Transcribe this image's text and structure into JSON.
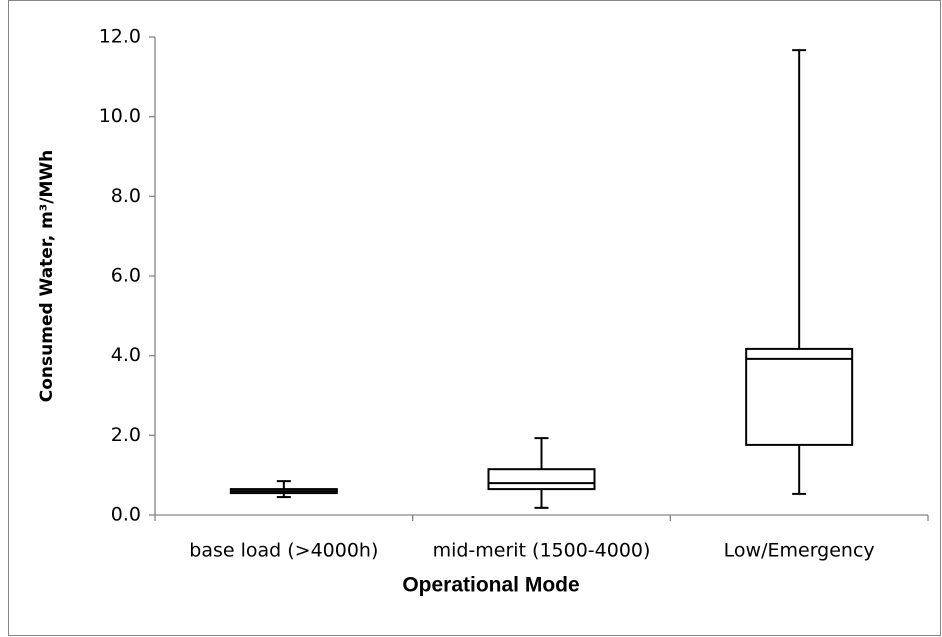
{
  "chart_data": {
    "type": "box",
    "x_label": "Operational Mode",
    "y_label": "Consumed Water, m³/MWh",
    "categories": [
      "base load (>4000h)",
      "mid-merit (1500-4000)",
      "Low/Emergency"
    ],
    "min": [
      0.45,
      0.18,
      0.53
    ],
    "q1": [
      0.55,
      0.65,
      1.76
    ],
    "median": [
      0.6,
      0.8,
      3.92
    ],
    "q3": [
      0.65,
      1.15,
      4.17
    ],
    "max": [
      0.85,
      1.93,
      11.67
    ],
    "color": "#000000",
    "ylim": [
      0,
      12
    ],
    "yticks": [
      {
        "value": 0,
        "label": "0.0"
      },
      {
        "value": 2,
        "label": "2.0"
      },
      {
        "value": 4,
        "label": "4.0"
      },
      {
        "value": 6,
        "label": "6.0"
      },
      {
        "value": 8,
        "label": "8.0"
      },
      {
        "value": 10,
        "label": "10.0"
      },
      {
        "value": 12,
        "label": "12.0"
      }
    ],
    "grid": false
  }
}
